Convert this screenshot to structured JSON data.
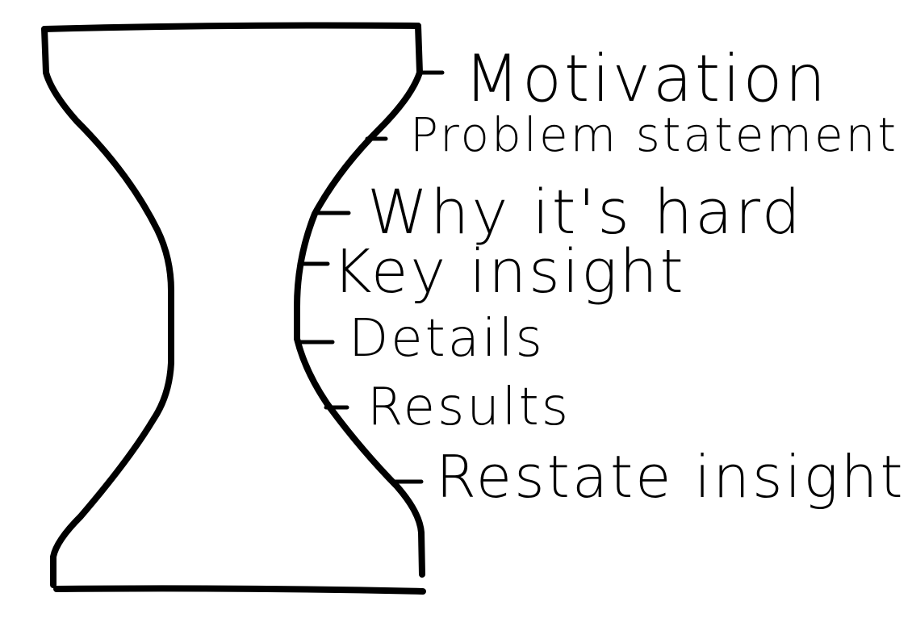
{
  "diagram": {
    "stroke_color": "#000000",
    "background": "#ffffff",
    "labels": [
      {
        "id": "motivation",
        "text": "Motivation"
      },
      {
        "id": "problem-statement",
        "text": "Problem statement"
      },
      {
        "id": "why-its-hard",
        "text": "Why it's hard"
      },
      {
        "id": "key-insight",
        "text": "Key insight"
      },
      {
        "id": "details",
        "text": "Details"
      },
      {
        "id": "results",
        "text": "Results"
      },
      {
        "id": "restate-insight",
        "text": "Restate insight"
      }
    ]
  }
}
